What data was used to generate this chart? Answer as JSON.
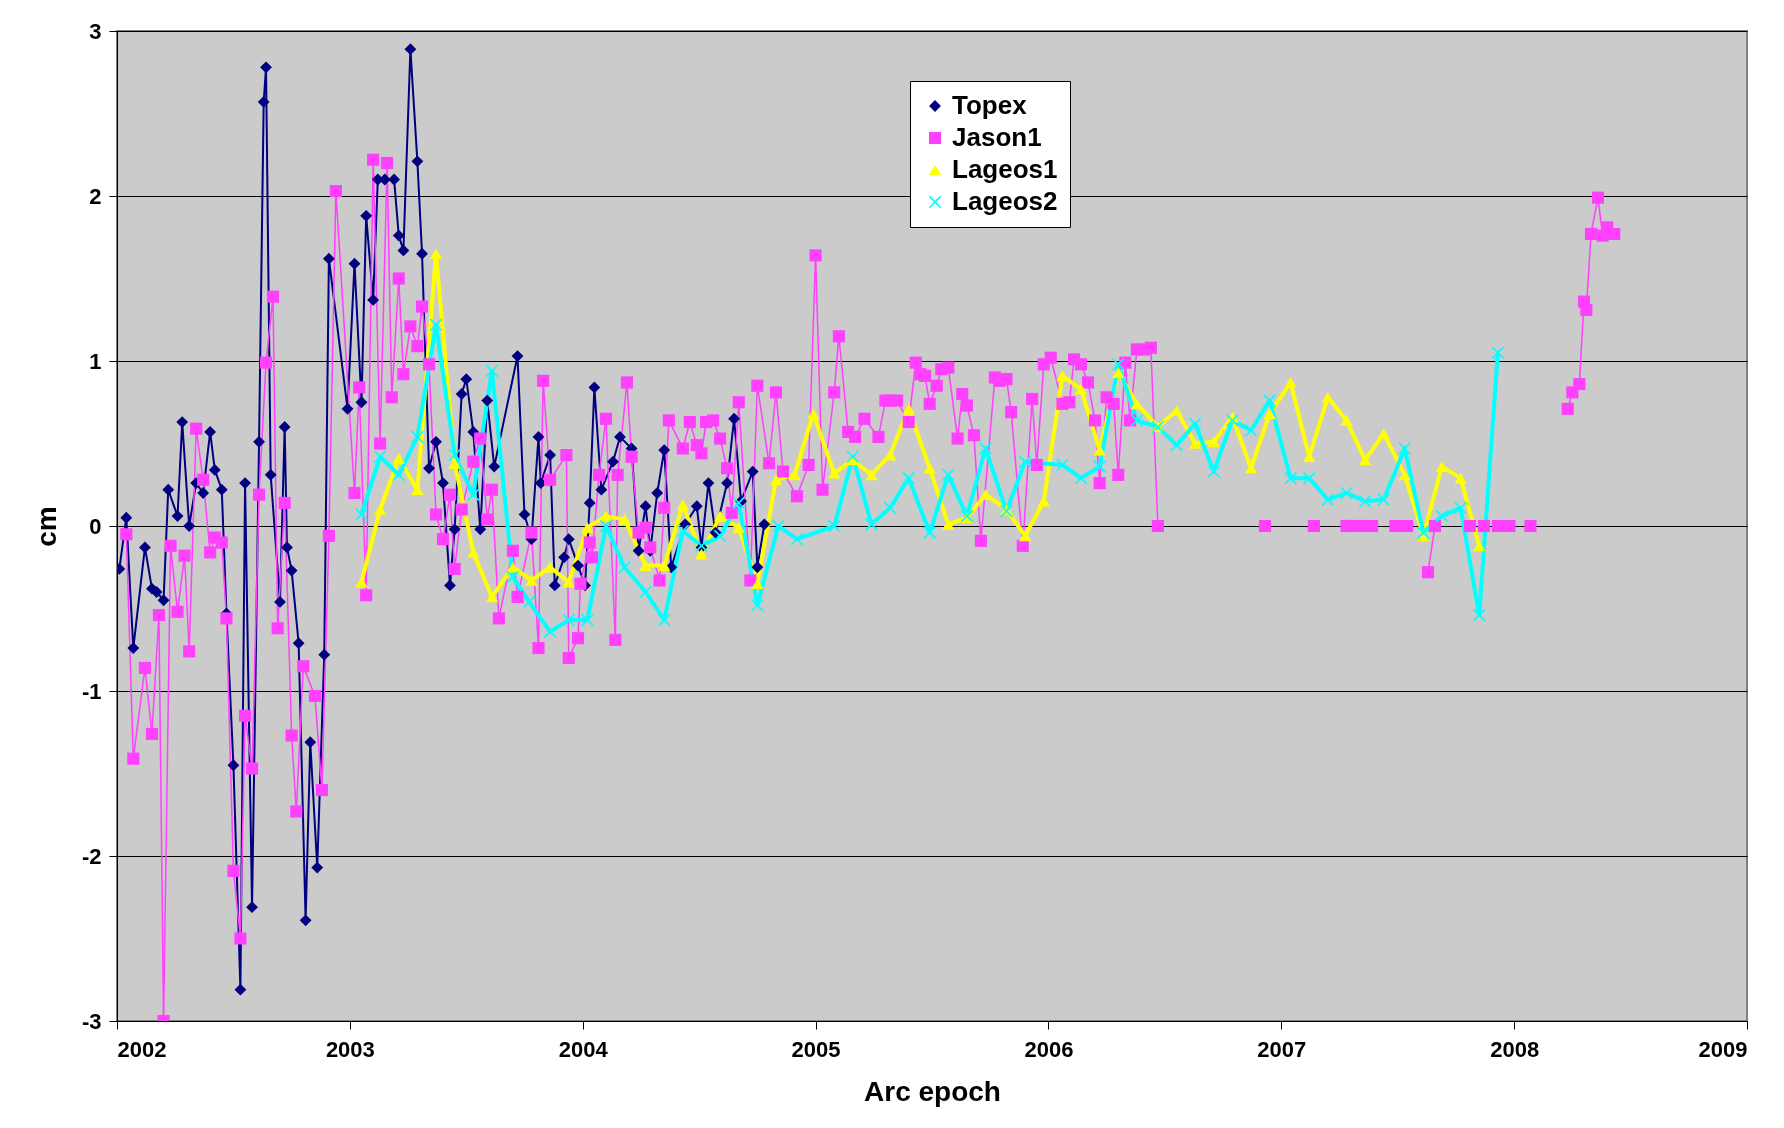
{
  "chart_data": {
    "type": "line",
    "xlabel": "Arc epoch",
    "ylabel": "cm",
    "xlim": [
      2002,
      2009
    ],
    "xticks": [
      2002,
      2003,
      2004,
      2005,
      2006,
      2007,
      2008,
      2009
    ],
    "ylim": [
      -3,
      3
    ],
    "yticks": [
      -3,
      -2,
      -1,
      0,
      1,
      2,
      3
    ],
    "grid": "y",
    "legend": "top",
    "series": [
      {
        "name": "Topex",
        "color": "#000080",
        "marker": "diamond",
        "x": [
          2002.01,
          2002.04,
          2002.07,
          2002.12,
          2002.15,
          2002.17,
          2002.2,
          2002.22,
          2002.26,
          2002.28,
          2002.31,
          2002.34,
          2002.37,
          2002.4,
          2002.42,
          2002.45,
          2002.47,
          2002.5,
          2002.53,
          2002.55,
          2002.58,
          2002.61,
          2002.63,
          2002.64,
          2002.66,
          2002.7,
          2002.72,
          2002.73,
          2002.75,
          2002.78,
          2002.81,
          2002.83,
          2002.86,
          2002.89,
          2002.91,
          2002.99,
          2003.02,
          2003.05,
          2003.07,
          2003.1,
          2003.12,
          2003.15,
          2003.19,
          2003.21,
          2003.23,
          2003.26,
          2003.29,
          2003.31,
          2003.34,
          2003.37,
          2003.4,
          2003.43,
          2003.45,
          2003.48,
          2003.5,
          2003.53,
          2003.56,
          2003.59,
          2003.62,
          2003.72,
          2003.75,
          2003.78,
          2003.81,
          2003.82,
          2003.86,
          2003.88,
          2003.92,
          2003.94,
          2003.98,
          2004.01,
          2004.03,
          2004.05,
          2004.08,
          2004.13,
          2004.16,
          2004.21,
          2004.24,
          2004.27,
          2004.29,
          2004.32,
          2004.35,
          2004.38,
          2004.44,
          2004.49,
          2004.51,
          2004.54,
          2004.57,
          2004.62,
          2004.65,
          2004.68,
          2004.73,
          2004.75,
          2004.78
        ],
        "values": [
          -0.26,
          0.05,
          -0.74,
          -0.13,
          -0.38,
          -0.4,
          -0.45,
          0.22,
          0.06,
          0.63,
          0.0,
          0.26,
          0.2,
          0.57,
          0.34,
          0.22,
          -0.53,
          -1.45,
          -2.81,
          0.26,
          -2.31,
          0.51,
          2.57,
          2.78,
          0.31,
          -0.46,
          0.6,
          -0.13,
          -0.27,
          -0.71,
          -2.39,
          -1.31,
          -2.07,
          -0.78,
          1.62,
          0.71,
          1.59,
          0.75,
          1.88,
          1.37,
          2.1,
          2.1,
          2.1,
          1.76,
          1.67,
          2.89,
          2.21,
          1.65,
          0.35,
          0.51,
          0.26,
          -0.36,
          -0.02,
          0.8,
          0.89,
          0.57,
          -0.02,
          0.76,
          0.36,
          1.03,
          0.07,
          -0.08,
          0.54,
          0.26,
          0.43,
          -0.36,
          -0.19,
          -0.08,
          -0.24,
          -0.36,
          0.14,
          0.84,
          0.22,
          0.39,
          0.54,
          0.47,
          -0.15,
          0.12,
          -0.15,
          0.2,
          0.46,
          -0.25,
          0.01,
          0.12,
          -0.13,
          0.26,
          -0.04,
          0.26,
          0.65,
          0.15,
          0.33,
          -0.25,
          0.01
        ]
      },
      {
        "name": "Jason1",
        "color": "#ff40ff",
        "marker": "square",
        "x": [
          2002.04,
          2002.07,
          2002.12,
          2002.15,
          2002.18,
          2002.2,
          2002.23,
          2002.26,
          2002.29,
          2002.31,
          2002.34,
          2002.37,
          2002.4,
          2002.42,
          2002.45,
          2002.47,
          2002.5,
          2002.53,
          2002.55,
          2002.58,
          2002.61,
          2002.64,
          2002.67,
          2002.69,
          2002.72,
          2002.75,
          2002.77,
          2002.8,
          2002.85,
          2002.88,
          2002.91,
          2002.94,
          2003.02,
          2003.04,
          2003.07,
          2003.1,
          2003.13,
          2003.16,
          2003.18,
          2003.21,
          2003.23,
          2003.26,
          2003.29,
          2003.31,
          2003.34,
          2003.37,
          2003.4,
          2003.43,
          2003.45,
          2003.48,
          2003.53,
          2003.56,
          2003.59,
          2003.61,
          2003.64,
          2003.7,
          2003.72,
          2003.78,
          2003.81,
          2003.83,
          2003.86,
          2003.93,
          2003.94,
          2003.98,
          2003.99,
          2004.03,
          2004.04,
          2004.07,
          2004.1,
          2004.14,
          2004.15,
          2004.19,
          2004.21,
          2004.24,
          2004.27,
          2004.29,
          2004.33,
          2004.35,
          2004.37,
          2004.43,
          2004.46,
          2004.49,
          2004.51,
          2004.53,
          2004.56,
          2004.59,
          2004.62,
          2004.64,
          2004.67,
          2004.72,
          2004.75,
          2004.8,
          2004.83,
          2004.86,
          2004.92,
          2004.97,
          2005.0,
          2005.03,
          2005.08,
          2005.1,
          2005.14,
          2005.17,
          2005.21,
          2005.27,
          2005.3,
          2005.32,
          2005.35,
          2005.4,
          2005.43,
          2005.45,
          2005.47,
          2005.49,
          2005.52,
          2005.54,
          2005.57,
          2005.61,
          2005.63,
          2005.65,
          2005.68,
          2005.71,
          2005.77,
          2005.79,
          2005.82,
          2005.84,
          2005.89,
          2005.93,
          2005.95,
          2005.98,
          2006.01,
          2006.06,
          2006.09,
          2006.11,
          2006.14,
          2006.17,
          2006.2,
          2006.22,
          2006.25,
          2006.28,
          2006.3,
          2006.33,
          2006.35,
          2006.38,
          2006.41,
          2006.44,
          2006.47,
          2006.7,
          2006.93,
          2007.03,
          2007.14,
          2007.2,
          2007.28,
          2007.3,
          2007.31,
          2007.33,
          2007.35,
          2007.37,
          2007.39,
          2007.44,
          2007.49,
          2007.51,
          2007.54,
          2007.58,
          2007.63,
          2007.66,
          2007.73,
          2007.81,
          2007.84,
          2007.87,
          2007.9,
          2007.93,
          2007.95,
          2007.98,
          2008.02,
          2008.07,
          2008.15,
          2008.23,
          2008.25,
          2008.28,
          2008.3,
          2008.31,
          2008.33,
          2008.36,
          2008.38,
          2008.4,
          2008.43
        ],
        "values": [
          -0.05,
          -1.41,
          -0.86,
          -1.26,
          -0.54,
          -3.0,
          -0.12,
          -0.52,
          -0.18,
          -0.76,
          0.59,
          0.28,
          -0.16,
          -0.07,
          -0.1,
          -0.56,
          -2.09,
          -2.5,
          -1.15,
          -1.47,
          0.19,
          0.99,
          1.39,
          -0.62,
          0.14,
          -1.27,
          -1.73,
          -0.85,
          -1.03,
          -1.6,
          -0.06,
          2.03,
          0.2,
          0.84,
          -0.42,
          2.22,
          0.5,
          2.2,
          0.78,
          1.5,
          0.92,
          1.21,
          1.09,
          1.33,
          0.98,
          0.07,
          -0.08,
          0.19,
          -0.26,
          0.1,
          0.39,
          0.53,
          0.04,
          0.22,
          -0.56,
          -0.15,
          -0.43,
          -0.04,
          -0.74,
          0.88,
          0.28,
          0.43,
          -0.8,
          -0.68,
          -0.35,
          -0.1,
          -0.19,
          0.31,
          0.65,
          -0.69,
          0.31,
          0.87,
          0.42,
          -0.04,
          -0.01,
          -0.13,
          -0.33,
          0.11,
          0.64,
          0.47,
          0.63,
          0.49,
          0.44,
          0.63,
          0.64,
          0.53,
          0.35,
          0.08,
          0.75,
          -0.33,
          0.85,
          0.38,
          0.81,
          0.33,
          0.18,
          0.37,
          1.64,
          0.22,
          0.81,
          1.15,
          0.57,
          0.54,
          0.65,
          0.54,
          0.76,
          0.76,
          0.76,
          0.63,
          0.99,
          0.92,
          0.91,
          0.74,
          0.85,
          0.95,
          0.96,
          0.53,
          0.8,
          0.73,
          0.55,
          -0.09,
          0.9,
          0.88,
          0.89,
          0.69,
          -0.12,
          0.77,
          0.37,
          0.98,
          1.02,
          0.74,
          0.75,
          1.01,
          0.98,
          0.87,
          0.64,
          0.26,
          0.78,
          0.74,
          0.31,
          0.99,
          0.64,
          1.07,
          1.07,
          1.08,
          0.0,
          null,
          0.0,
          null,
          0.0,
          null,
          0.0,
          null,
          0.0,
          null,
          0.0,
          null,
          0.0,
          null,
          0.0,
          null,
          0.0,
          null,
          -0.28,
          0.0,
          null,
          0.0,
          null,
          0.0,
          null,
          0.0,
          null,
          0.0,
          null,
          0.0,
          null,
          0.71,
          0.81,
          0.86,
          1.36,
          1.31,
          1.77,
          1.99,
          1.76,
          1.81,
          1.77
        ]
      },
      {
        "name": "Lageos1",
        "color": "#ffff00",
        "marker": "triangle",
        "x": [
          2003.05,
          2003.13,
          2003.21,
          2003.29,
          2003.37,
          2003.45,
          2003.53,
          2003.61,
          2003.7,
          2003.78,
          2003.86,
          2003.94,
          2004.02,
          2004.1,
          2004.18,
          2004.27,
          2004.35,
          2004.43,
          2004.51,
          2004.59,
          2004.67,
          2004.75,
          2004.83,
          2004.91,
          2004.99,
          2005.08,
          2005.16,
          2005.24,
          2005.32,
          2005.4,
          2005.49,
          2005.57,
          2005.65,
          2005.73,
          2005.82,
          2005.9,
          2005.98,
          2006.06,
          2006.14,
          2006.22,
          2006.3,
          2006.38,
          2006.47,
          2006.55,
          2006.63,
          2006.71,
          2006.79,
          2006.87,
          2006.95,
          2007.04,
          2007.12,
          2007.2,
          2007.28,
          2007.36,
          2007.44,
          2007.53,
          2007.61,
          2007.69,
          2007.77,
          2007.85
        ],
        "values": [
          -0.34,
          0.1,
          0.41,
          0.22,
          1.65,
          0.38,
          -0.16,
          -0.43,
          -0.25,
          -0.33,
          -0.25,
          -0.34,
          -0.01,
          0.06,
          0.04,
          -0.24,
          -0.24,
          0.13,
          -0.17,
          0.06,
          -0.01,
          -0.35,
          0.28,
          0.31,
          0.68,
          0.32,
          0.4,
          0.31,
          0.43,
          0.71,
          0.35,
          0.01,
          0.05,
          0.19,
          0.1,
          -0.06,
          0.15,
          0.91,
          0.83,
          0.46,
          0.93,
          0.74,
          0.6,
          0.7,
          0.5,
          0.51,
          0.66,
          0.35,
          0.68,
          0.87,
          0.42,
          0.78,
          0.64,
          0.4,
          0.56,
          0.31,
          -0.06,
          0.36,
          0.29,
          -0.12
        ]
      },
      {
        "name": "Lageos2",
        "color": "#00ffff",
        "marker": "cross",
        "x": [
          2003.05,
          2003.13,
          2003.21,
          2003.29,
          2003.37,
          2003.45,
          2003.53,
          2003.61,
          2003.7,
          2003.77,
          2003.86,
          2003.94,
          2004.02,
          2004.1,
          2004.18,
          2004.27,
          2004.35,
          2004.43,
          2004.51,
          2004.59,
          2004.67,
          2004.75,
          2004.84,
          2004.92,
          2005.08,
          2005.16,
          2005.24,
          2005.32,
          2005.4,
          2005.49,
          2005.57,
          2005.65,
          2005.73,
          2005.82,
          2005.9,
          2006.06,
          2006.14,
          2006.22,
          2006.3,
          2006.38,
          2006.47,
          2006.55,
          2006.63,
          2006.71,
          2006.79,
          2006.87,
          2006.95,
          2007.04,
          2007.12,
          2007.2,
          2007.28,
          2007.36,
          2007.44,
          2007.53,
          2007.61,
          2007.69,
          2007.77,
          2007.85,
          2007.93
        ],
        "values": [
          0.07,
          0.42,
          0.31,
          0.54,
          1.22,
          0.43,
          0.19,
          0.94,
          -0.31,
          -0.46,
          -0.64,
          -0.57,
          -0.57,
          0.0,
          -0.25,
          -0.4,
          -0.57,
          -0.03,
          -0.12,
          -0.06,
          0.14,
          -0.48,
          0.0,
          -0.08,
          0.0,
          0.42,
          0.01,
          0.11,
          0.29,
          -0.04,
          0.31,
          0.06,
          0.47,
          0.09,
          0.39,
          0.37,
          0.29,
          0.36,
          0.98,
          0.64,
          0.6,
          0.49,
          0.62,
          0.33,
          0.64,
          0.58,
          0.76,
          0.29,
          0.29,
          0.16,
          0.2,
          0.15,
          0.16,
          0.47,
          -0.04,
          0.06,
          0.11,
          -0.54,
          1.05
        ]
      }
    ]
  }
}
